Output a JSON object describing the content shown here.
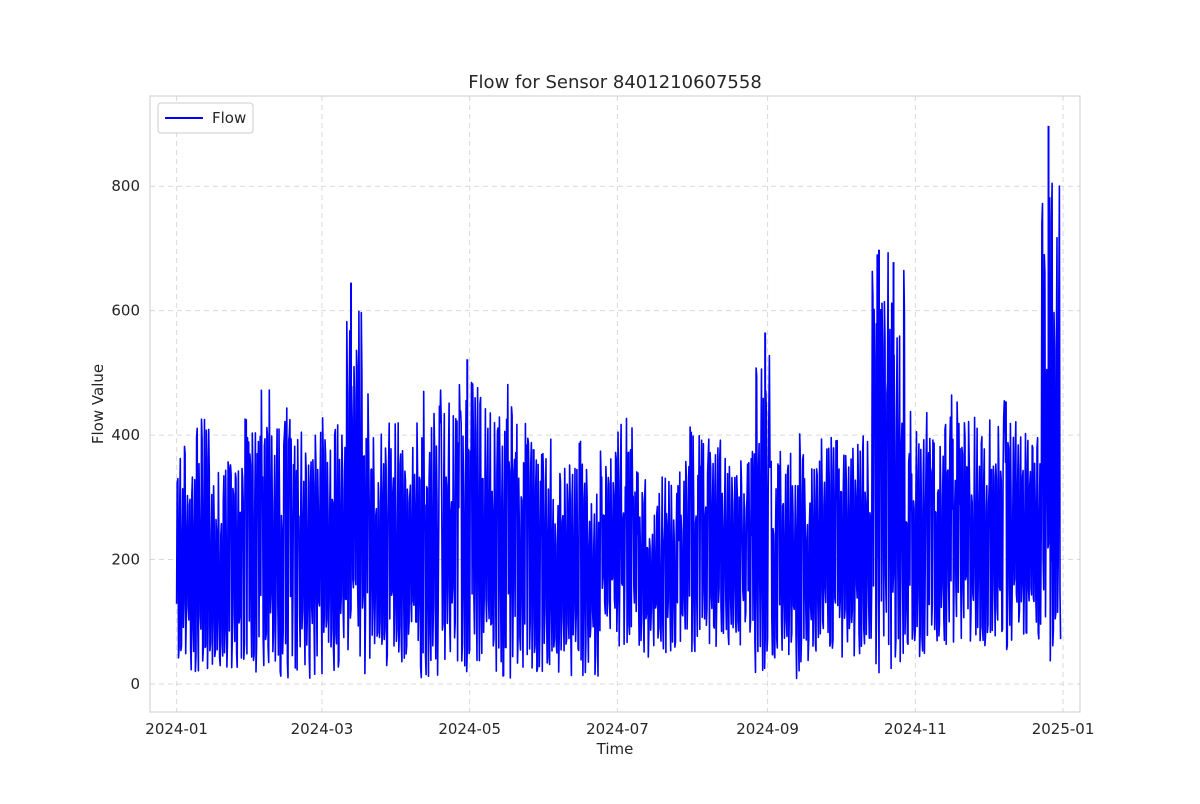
{
  "chart_data": {
    "type": "line",
    "title": "Flow for Sensor 8401210607558",
    "xlabel": "Time",
    "ylabel": "Flow Value",
    "x_tick_labels": [
      "2024-01",
      "2024-03",
      "2024-05",
      "2024-07",
      "2024-09",
      "2024-11",
      "2025-01"
    ],
    "x_tick_dates": [
      "2024-01-01",
      "2024-03-01",
      "2024-05-01",
      "2024-07-01",
      "2024-09-01",
      "2024-11-01",
      "2025-01-01"
    ],
    "y_ticks": [
      0,
      200,
      400,
      600,
      800
    ],
    "y_tick_labels": [
      "0",
      "200",
      "400",
      "600",
      "800"
    ],
    "xlim": [
      "2023-12-21",
      "2025-01-08"
    ],
    "ylim": [
      -45,
      945
    ],
    "grid": true,
    "legend_position": "top-left",
    "series": [
      {
        "name": "Flow",
        "color": "#0000ff",
        "x_start": "2024-01-01",
        "x_end": "2024-12-31",
        "weekly_envelope": [
          {
            "week_start": "2024-01-01",
            "min": 0,
            "max": 425
          },
          {
            "week_start": "2024-01-08",
            "min": 0,
            "max": 460
          },
          {
            "week_start": "2024-01-15",
            "min": 0,
            "max": 380
          },
          {
            "week_start": "2024-01-22",
            "min": 0,
            "max": 395
          },
          {
            "week_start": "2024-01-29",
            "min": 0,
            "max": 450
          },
          {
            "week_start": "2024-02-05",
            "min": 0,
            "max": 480
          },
          {
            "week_start": "2024-02-12",
            "min": 0,
            "max": 445
          },
          {
            "week_start": "2024-02-19",
            "min": 0,
            "max": 450
          },
          {
            "week_start": "2024-02-26",
            "min": 0,
            "max": 480
          },
          {
            "week_start": "2024-03-04",
            "min": 0,
            "max": 450
          },
          {
            "week_start": "2024-03-11",
            "min": 0,
            "max": 645
          },
          {
            "week_start": "2024-03-18",
            "min": 0,
            "max": 490
          },
          {
            "week_start": "2024-03-25",
            "min": 0,
            "max": 465
          },
          {
            "week_start": "2024-04-01",
            "min": 0,
            "max": 470
          },
          {
            "week_start": "2024-04-08",
            "min": 0,
            "max": 485
          },
          {
            "week_start": "2024-04-15",
            "min": 0,
            "max": 480
          },
          {
            "week_start": "2024-04-22",
            "min": 0,
            "max": 495
          },
          {
            "week_start": "2024-04-29",
            "min": 0,
            "max": 520
          },
          {
            "week_start": "2024-05-06",
            "min": 0,
            "max": 460
          },
          {
            "week_start": "2024-05-13",
            "min": 0,
            "max": 485
          },
          {
            "week_start": "2024-05-20",
            "min": 0,
            "max": 430
          },
          {
            "week_start": "2024-05-27",
            "min": 0,
            "max": 405
          },
          {
            "week_start": "2024-06-03",
            "min": 0,
            "max": 395
          },
          {
            "week_start": "2024-06-10",
            "min": 0,
            "max": 390
          },
          {
            "week_start": "2024-06-17",
            "min": 5,
            "max": 370
          },
          {
            "week_start": "2024-06-24",
            "min": 60,
            "max": 415
          },
          {
            "week_start": "2024-07-01",
            "min": 50,
            "max": 435
          },
          {
            "week_start": "2024-07-08",
            "min": 30,
            "max": 365
          },
          {
            "week_start": "2024-07-15",
            "min": 40,
            "max": 335
          },
          {
            "week_start": "2024-07-22",
            "min": 40,
            "max": 360
          },
          {
            "week_start": "2024-07-29",
            "min": 40,
            "max": 435
          },
          {
            "week_start": "2024-08-05",
            "min": 35,
            "max": 415
          },
          {
            "week_start": "2024-08-12",
            "min": 45,
            "max": 410
          },
          {
            "week_start": "2024-08-19",
            "min": 40,
            "max": 400
          },
          {
            "week_start": "2024-08-26",
            "min": 0,
            "max": 565
          },
          {
            "week_start": "2024-09-02",
            "min": 30,
            "max": 385
          },
          {
            "week_start": "2024-09-09",
            "min": 0,
            "max": 410
          },
          {
            "week_start": "2024-09-16",
            "min": 30,
            "max": 395
          },
          {
            "week_start": "2024-09-23",
            "min": 40,
            "max": 435
          },
          {
            "week_start": "2024-09-30",
            "min": 35,
            "max": 425
          },
          {
            "week_start": "2024-10-07",
            "min": 30,
            "max": 440
          },
          {
            "week_start": "2024-10-14",
            "min": 0,
            "max": 700
          },
          {
            "week_start": "2024-10-21",
            "min": 10,
            "max": 680
          },
          {
            "week_start": "2024-10-28",
            "min": 35,
            "max": 440
          },
          {
            "week_start": "2024-11-04",
            "min": 40,
            "max": 440
          },
          {
            "week_start": "2024-11-11",
            "min": 40,
            "max": 470
          },
          {
            "week_start": "2024-11-18",
            "min": 45,
            "max": 455
          },
          {
            "week_start": "2024-11-25",
            "min": 45,
            "max": 450
          },
          {
            "week_start": "2024-12-02",
            "min": 45,
            "max": 460
          },
          {
            "week_start": "2024-12-09",
            "min": 45,
            "max": 455
          },
          {
            "week_start": "2024-12-16",
            "min": 45,
            "max": 450
          },
          {
            "week_start": "2024-12-23",
            "min": 0,
            "max": 895
          }
        ],
        "peaks": [
          {
            "date": "2024-03-13",
            "value": 645
          },
          {
            "date": "2024-04-30",
            "value": 522
          },
          {
            "date": "2024-08-31",
            "value": 565
          },
          {
            "date": "2024-10-16",
            "value": 580
          },
          {
            "date": "2024-10-17",
            "value": 698
          },
          {
            "date": "2024-10-23",
            "value": 678
          },
          {
            "date": "2024-12-26",
            "value": 897
          },
          {
            "date": "2024-12-27",
            "value": 560
          }
        ]
      }
    ]
  }
}
